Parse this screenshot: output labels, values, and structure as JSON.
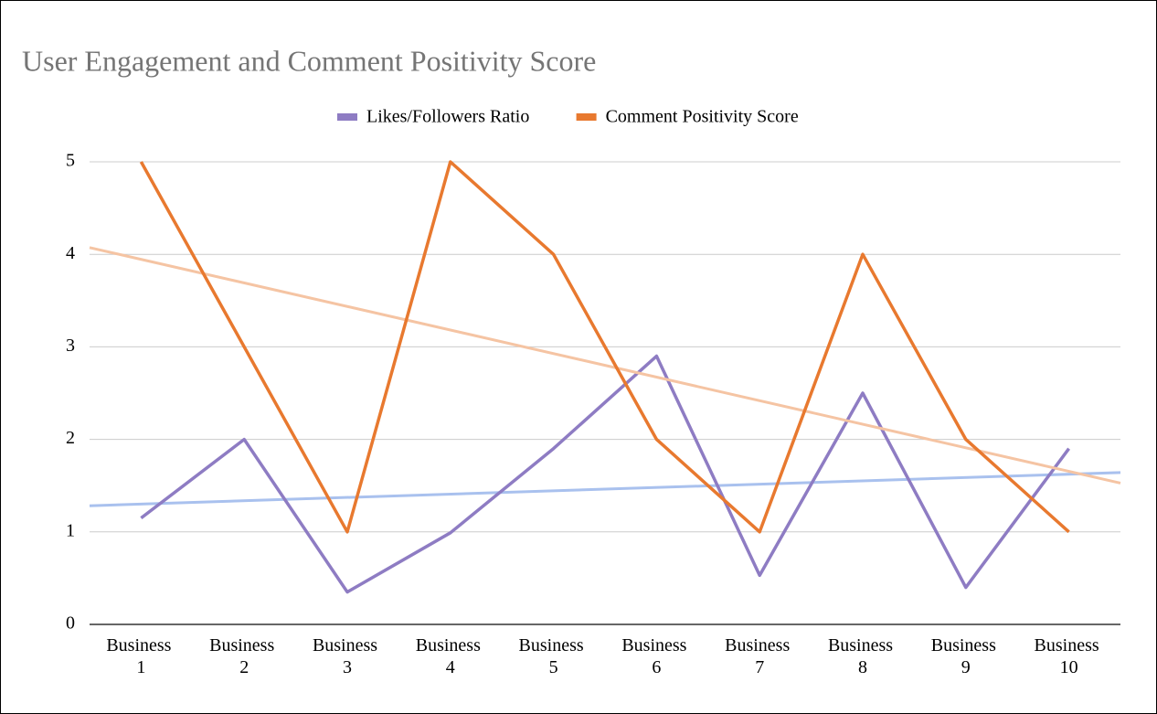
{
  "chart_data": {
    "type": "line",
    "title": "User Engagement and Comment Positivity Score",
    "categories": [
      "Business 1",
      "Business 2",
      "Business 3",
      "Business 4",
      "Business 5",
      "Business 6",
      "Business 7",
      "Business 8",
      "Business 9",
      "Business 10"
    ],
    "series": [
      {
        "name": "Likes/Followers Ratio",
        "color": "#8e7cc3",
        "trendline_color": "#a9c1ee",
        "values": [
          1.15,
          2.0,
          0.35,
          0.99,
          1.9,
          2.9,
          0.53,
          2.5,
          0.4,
          1.9
        ]
      },
      {
        "name": "Comment Positivity Score",
        "color": "#e8792f",
        "trendline_color": "#f5c4a3",
        "values": [
          5,
          3,
          1,
          5,
          4,
          2,
          1,
          4,
          2,
          1
        ]
      }
    ],
    "trendline": true,
    "ylim": [
      0,
      5
    ],
    "yticks": [
      0,
      1,
      2,
      3,
      4,
      5
    ],
    "grid": true,
    "legend": "top"
  }
}
